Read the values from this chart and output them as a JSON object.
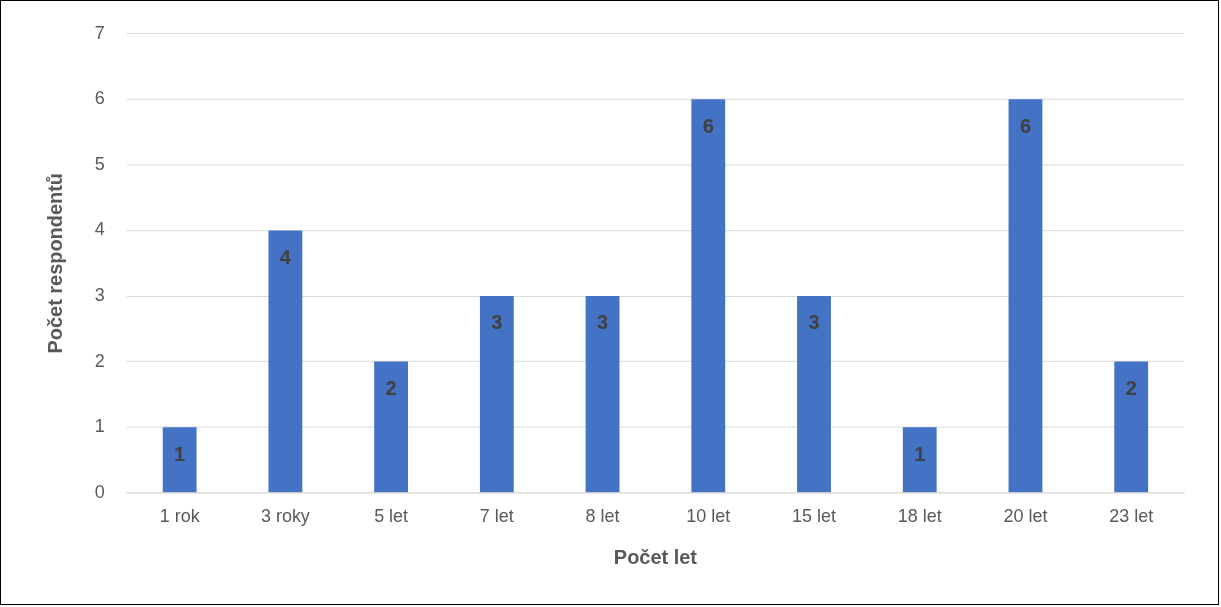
{
  "chart_data": {
    "type": "bar",
    "xlabel": "Počet let",
    "ylabel": "Počet respondentů",
    "categories": [
      "1 rok",
      "3 roky",
      "5 let",
      "7 let",
      "8 let",
      "10 let",
      "15 let",
      "18 let",
      "20 let",
      "23 let"
    ],
    "values": [
      1,
      4,
      2,
      3,
      3,
      6,
      3,
      1,
      6,
      2
    ],
    "color": "#4472c4",
    "ylim": [
      0,
      7
    ],
    "yticks": [
      0,
      1,
      2,
      3,
      4,
      5,
      6,
      7
    ],
    "grid": "y",
    "data_labels": true
  }
}
